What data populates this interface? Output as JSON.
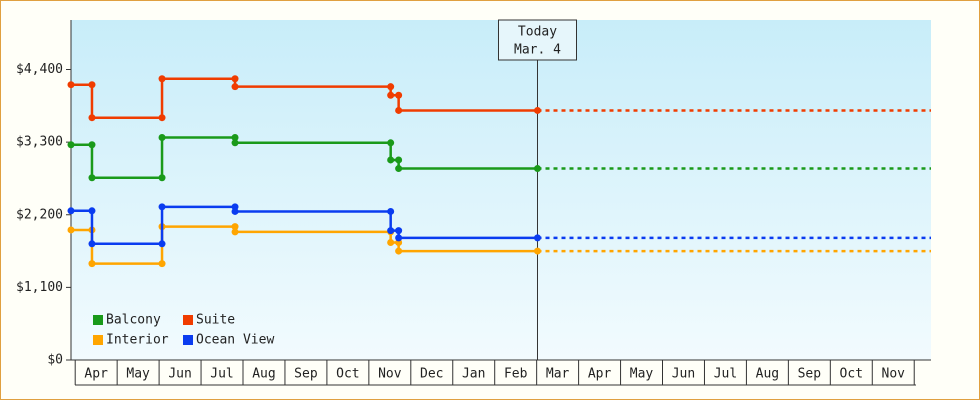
{
  "chart_data": {
    "type": "step-line",
    "x": [
      -0.1,
      0.4,
      0.4,
      2.07,
      2.07,
      3.81,
      3.81,
      7.52,
      7.52,
      7.71,
      7.71,
      11.02
    ],
    "series": [
      {
        "name": "Balcony",
        "color": "#1a9a1a",
        "values": [
          3260,
          3260,
          2760,
          2760,
          3370,
          3370,
          3290,
          3290,
          3030,
          3030,
          2900,
          2900
        ]
      },
      {
        "name": "Suite",
        "color": "#f03c00",
        "values": [
          4170,
          4170,
          3670,
          3670,
          4260,
          4260,
          4140,
          4140,
          4010,
          4010,
          3780,
          3780
        ]
      },
      {
        "name": "Interior",
        "color": "#ffa500",
        "values": [
          1970,
          1970,
          1460,
          1460,
          2020,
          2020,
          1940,
          1940,
          1780,
          1780,
          1650,
          1650
        ]
      },
      {
        "name": "Ocean View",
        "color": "#0a3cf0",
        "values": [
          2260,
          2260,
          1760,
          1760,
          2320,
          2320,
          2250,
          2250,
          1960,
          1960,
          1850,
          1850
        ]
      }
    ],
    "xlim": [
      -0.1,
      20.4
    ],
    "xticks": [
      {
        "value": 0.5,
        "label": "Apr"
      },
      {
        "value": 1.5,
        "label": "May"
      },
      {
        "value": 2.5,
        "label": "Jun"
      },
      {
        "value": 3.5,
        "label": "Jul"
      },
      {
        "value": 4.5,
        "label": "Aug"
      },
      {
        "value": 5.5,
        "label": "Sep"
      },
      {
        "value": 6.5,
        "label": "Oct"
      },
      {
        "value": 7.5,
        "label": "Nov"
      },
      {
        "value": 8.5,
        "label": "Dec"
      },
      {
        "value": 9.5,
        "label": "Jan"
      },
      {
        "value": 10.5,
        "label": "Feb"
      },
      {
        "value": 11.5,
        "label": "Mar"
      },
      {
        "value": 12.5,
        "label": "Apr"
      },
      {
        "value": 13.5,
        "label": "May"
      },
      {
        "value": 14.5,
        "label": "Jun"
      },
      {
        "value": 15.5,
        "label": "Jul"
      },
      {
        "value": 16.5,
        "label": "Aug"
      },
      {
        "value": 17.5,
        "label": "Sep"
      },
      {
        "value": 18.5,
        "label": "Oct"
      },
      {
        "value": 19.5,
        "label": "Nov"
      }
    ],
    "ylim": [
      0,
      5150
    ],
    "yticks": [
      {
        "value": 0,
        "label": "$0"
      },
      {
        "value": 1100,
        "label": "$1,100"
      },
      {
        "value": 2200,
        "label": "$2,200"
      },
      {
        "value": 3300,
        "label": "$3,300"
      },
      {
        "value": 4400,
        "label": "$4,400"
      }
    ],
    "today": {
      "x": 11.02,
      "label": "Today",
      "date": "Mar. 4"
    },
    "legend": "bottom-left"
  }
}
